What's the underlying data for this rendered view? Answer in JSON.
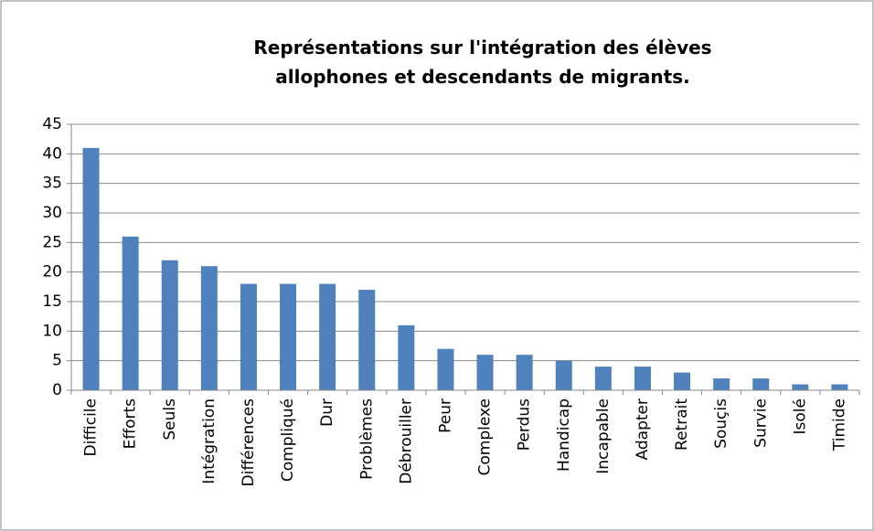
{
  "chart_data": {
    "type": "bar",
    "title": "Représentations sur l'intégration des élèves allophones et descendants de migrants.",
    "categories": [
      "Difficile",
      "Efforts",
      "Seuls",
      "Intégration",
      "Différences",
      "Compliqué",
      "Dur",
      "Problèmes",
      "Débrouiller",
      "Peur",
      "Complexe",
      "Perdus",
      "Handicap",
      "Incapable",
      "Adapter",
      "Retrait",
      "Souçis",
      "Survie",
      "Isolé",
      "Timide"
    ],
    "values": [
      41,
      26,
      22,
      21,
      18,
      18,
      18,
      17,
      11,
      7,
      6,
      6,
      5,
      4,
      4,
      3,
      2,
      2,
      1,
      1
    ],
    "color": "#4f81bd",
    "ylim": [
      0,
      45
    ],
    "yticks": [
      0,
      5,
      10,
      15,
      20,
      25,
      30,
      35,
      40,
      45
    ],
    "grid": true
  }
}
